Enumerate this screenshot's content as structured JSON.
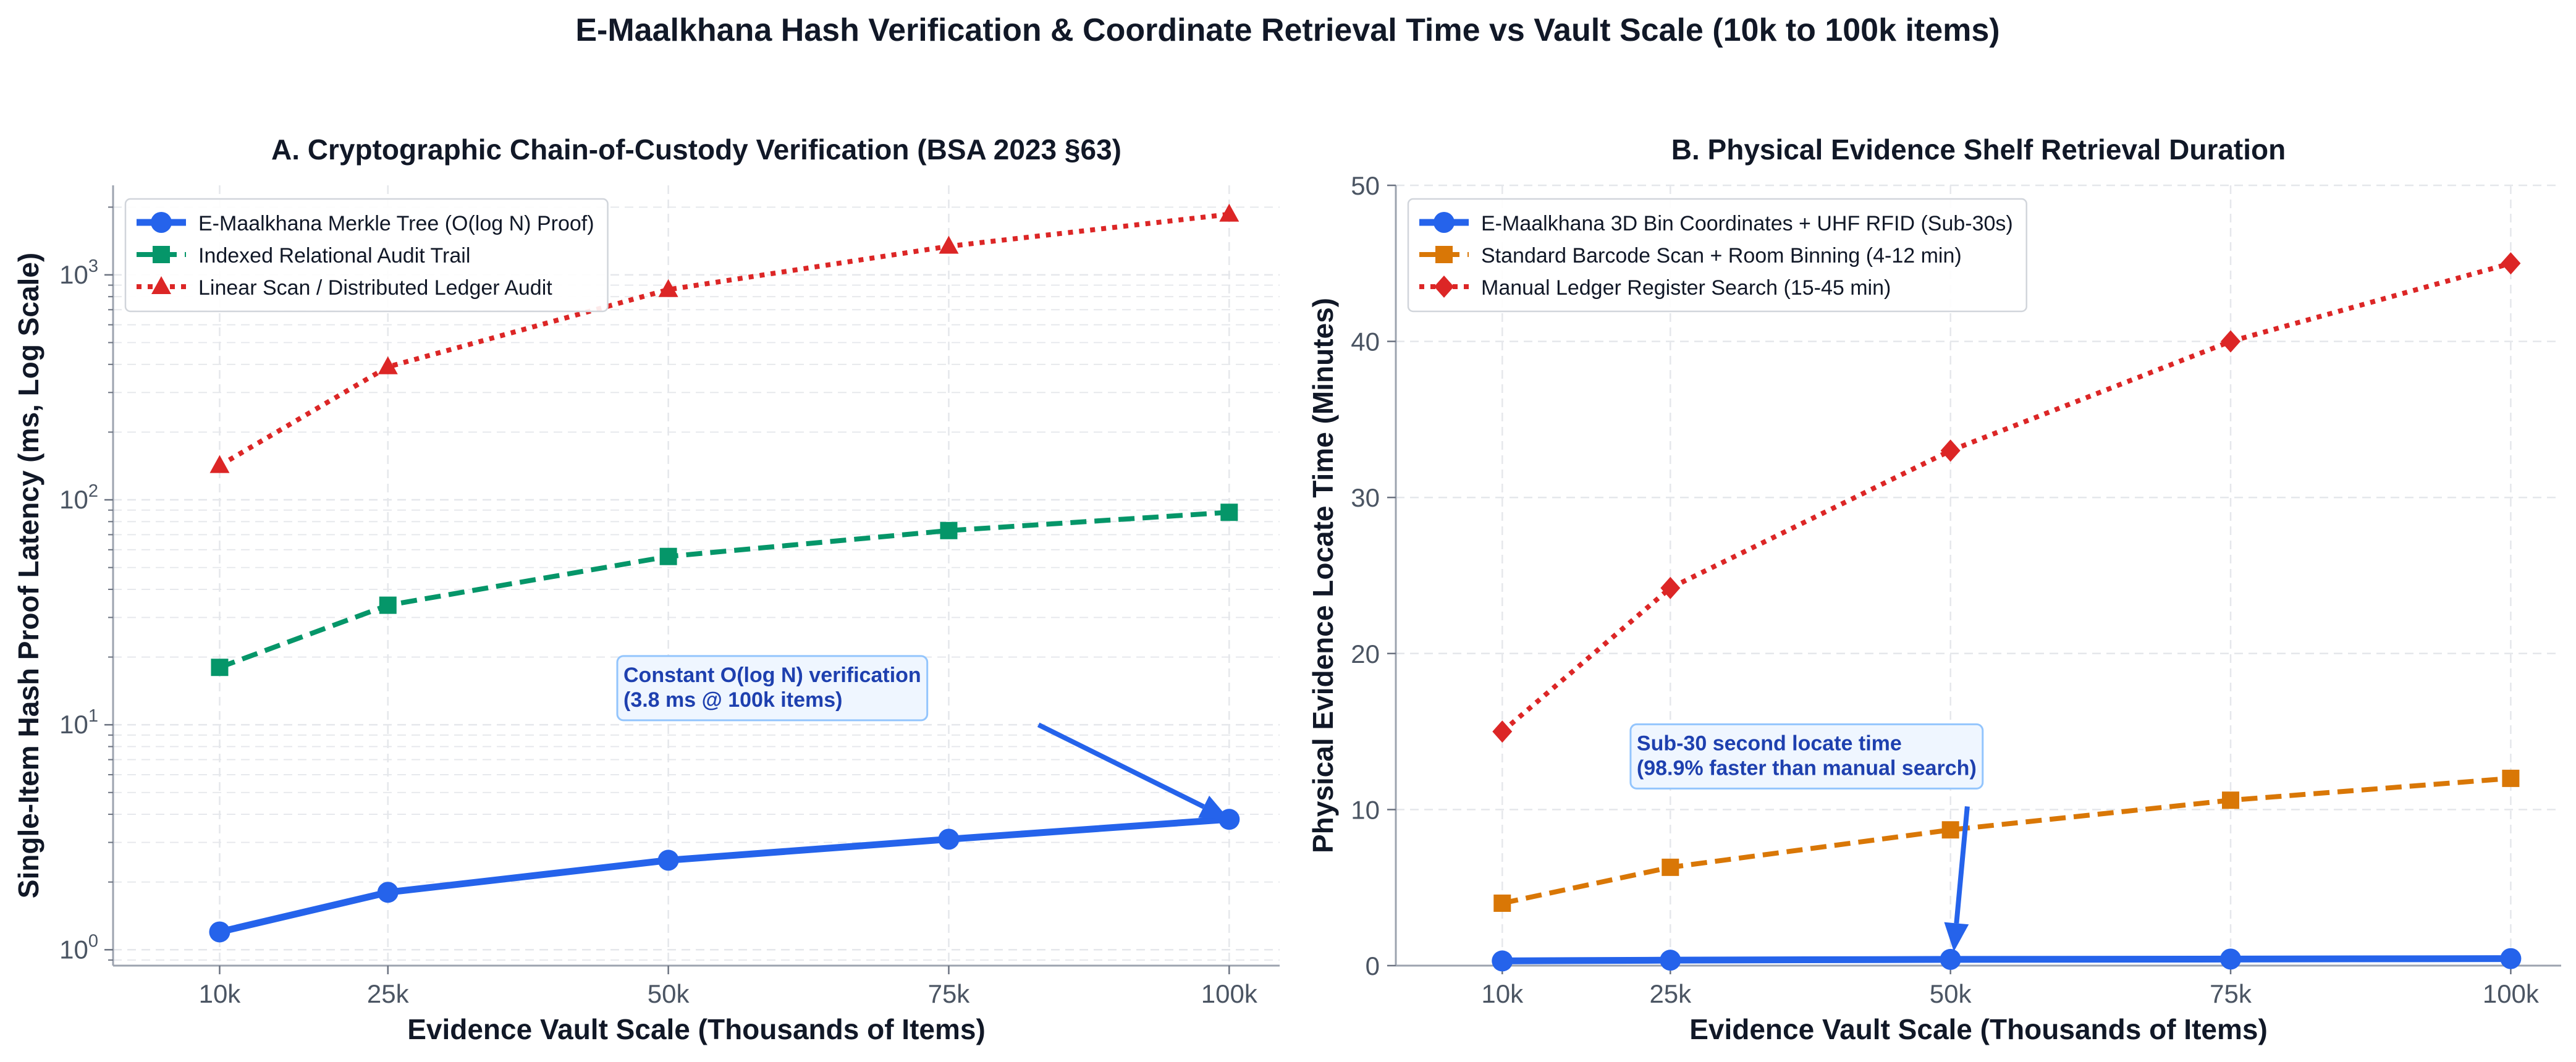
{
  "figure": {
    "title": "E-Maalkhana Hash Verification & Coordinate Retrieval Time vs Vault Scale (10k to 100k items)"
  },
  "colors": {
    "blue": "#2563eb",
    "green": "#059669",
    "red": "#dc2626",
    "orange": "#d97706",
    "annotation_text": "#1e40af",
    "annotation_bg": "#eff6ff",
    "annotation_border": "#93c5fd",
    "grid": "#e5e7eb",
    "axis_text": "#4b5563",
    "title_text": "#111827"
  },
  "chart_data": [
    {
      "id": "A",
      "type": "line",
      "title": "A. Cryptographic Chain-of-Custody Verification (BSA 2023 §63)",
      "xlabel": "Evidence Vault Scale (Thousands of Items)",
      "ylabel": "Single-Item Hash Proof Latency (ms, Log Scale)",
      "yscale": "log",
      "ylim": [
        0.85,
        2500
      ],
      "x": [
        10,
        25,
        50,
        75,
        100
      ],
      "x_tick_labels": [
        "10k",
        "25k",
        "50k",
        "75k",
        "100k"
      ],
      "y_ticks": [
        1,
        10,
        100,
        1000
      ],
      "y_tick_labels": [
        {
          "base": "10",
          "exp": "0"
        },
        {
          "base": "10",
          "exp": "1"
        },
        {
          "base": "10",
          "exp": "2"
        },
        {
          "base": "10",
          "exp": "3"
        }
      ],
      "grid": true,
      "legend_position": "top-left",
      "series": [
        {
          "name": "E-Maalkhana Merkle Tree (O(log N) Proof)",
          "color_key": "blue",
          "marker": "circle",
          "dash": "solid",
          "values": [
            1.2,
            1.8,
            2.5,
            3.1,
            3.8
          ]
        },
        {
          "name": "Indexed Relational Audit Trail",
          "color_key": "green",
          "marker": "square",
          "dash": "dashed",
          "values": [
            18,
            34,
            56,
            73,
            88
          ]
        },
        {
          "name": "Linear Scan / Distributed Ledger Audit",
          "color_key": "red",
          "marker": "triangle",
          "dash": "dotted",
          "values": [
            142,
            390,
            860,
            1340,
            1860
          ]
        }
      ],
      "annotation": {
        "lines": [
          "Constant O(log N) verification",
          "(3.8 ms @ 100k items)"
        ],
        "text_x": 46,
        "text_y": 15.5,
        "arrow_tail": [
          83,
          10
        ],
        "arrow_head": [
          100,
          3.8
        ]
      }
    },
    {
      "id": "B",
      "type": "line",
      "title": "B. Physical Evidence Shelf Retrieval Duration",
      "xlabel": "Evidence Vault Scale (Thousands of Items)",
      "ylabel": "Physical Evidence Locate Time (Minutes)",
      "yscale": "linear",
      "ylim": [
        0,
        50
      ],
      "x": [
        10,
        25,
        50,
        75,
        100
      ],
      "x_tick_labels": [
        "10k",
        "25k",
        "50k",
        "75k",
        "100k"
      ],
      "y_ticks": [
        0,
        10,
        20,
        30,
        40,
        50
      ],
      "y_tick_labels": [
        "0",
        "10",
        "20",
        "30",
        "40",
        "50"
      ],
      "grid": true,
      "legend_position": "top-left",
      "series": [
        {
          "name": "E-Maalkhana 3D Bin Coordinates + UHF RFID (Sub-30s)",
          "color_key": "blue",
          "marker": "circle",
          "dash": "solid",
          "values": [
            0.3,
            0.35,
            0.4,
            0.42,
            0.45
          ]
        },
        {
          "name": "Standard Barcode Scan + Room Binning (4-12 min)",
          "color_key": "orange",
          "marker": "square",
          "dash": "dashed",
          "values": [
            4,
            6.3,
            8.7,
            10.6,
            12
          ]
        },
        {
          "name": "Manual Ledger Register Search (15-45 min)",
          "color_key": "red",
          "marker": "diamond",
          "dash": "dotted",
          "values": [
            15,
            24.2,
            33,
            40,
            45
          ]
        }
      ],
      "annotation": {
        "lines": [
          "Sub-30 second locate time",
          "(98.9% faster than manual search)"
        ],
        "text_x": 22,
        "text_y": 13.8,
        "arrow_tail": [
          51.5,
          10.2
        ],
        "arrow_head": [
          50.3,
          0.9
        ]
      }
    }
  ]
}
